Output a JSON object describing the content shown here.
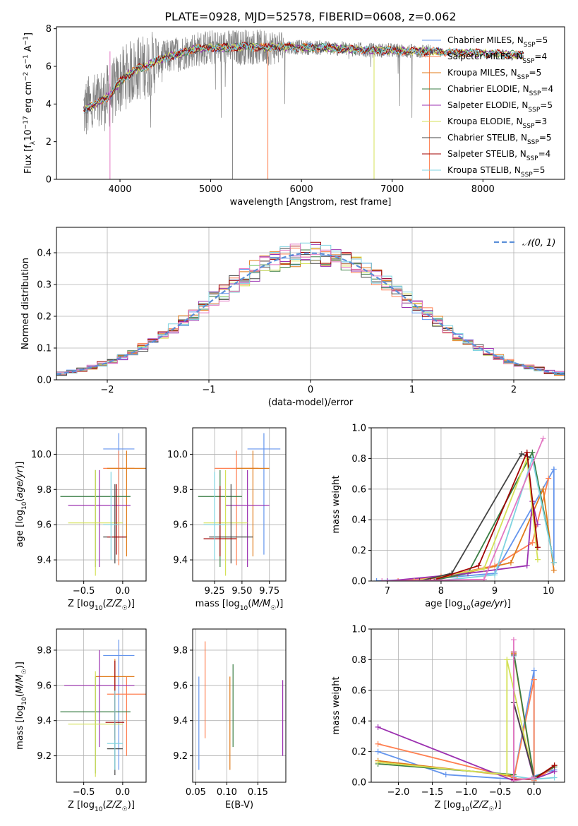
{
  "figure": {
    "title": "PLATE=0928, MJD=52578, FIBERID=0608, z=0.062"
  },
  "colors": {
    "models": [
      "#6495ed",
      "#ff7f50",
      "#e07b1a",
      "#3a7d44",
      "#9b30b0",
      "#d4e157",
      "#444444",
      "#a00000",
      "#7fd3e0"
    ],
    "extra_pink": "#e377c2",
    "data_gray": "#808080",
    "grid": "#b0b0b0",
    "gauss": "#5b8fd8"
  },
  "chart_data": [
    {
      "id": "spectrum",
      "type": "line",
      "xlabel": "wavelength [Angstrom, rest frame]",
      "ylabel": "Flux [f_λ 10^-17 erg cm^-2 s^-1 A^-1]",
      "xlim": [
        3300,
        8900
      ],
      "ylim": [
        0,
        8.1
      ],
      "xticks": [
        4000,
        5000,
        6000,
        7000,
        8000
      ],
      "yticks": [
        0,
        2,
        4,
        6,
        8
      ],
      "grid": false,
      "legend_position": "top-right",
      "legend": [
        {
          "base": "Chabrier MILES, N",
          "sub": "SSP",
          "rest": "=5"
        },
        {
          "base": "Salpeter MILES, N",
          "sub": "SSP",
          "rest": "=4"
        },
        {
          "base": "Kroupa MILES, N",
          "sub": "SSP",
          "rest": "=5"
        },
        {
          "base": "Chabrier ELODIE, N",
          "sub": "SSP",
          "rest": "=4"
        },
        {
          "base": "Salpeter ELODIE, N",
          "sub": "SSP",
          "rest": "=5"
        },
        {
          "base": "Kroupa ELODIE, N",
          "sub": "SSP",
          "rest": "=3"
        },
        {
          "base": "Chabrier STELIB, N",
          "sub": "SSP",
          "rest": "=5"
        },
        {
          "base": "Salpeter STELIB, N",
          "sub": "SSP",
          "rest": "=4"
        },
        {
          "base": "Kroupa STELIB, N",
          "sub": "SSP",
          "rest": "=5"
        }
      ],
      "continuum": {
        "x": [
          3600,
          3700,
          3800,
          3900,
          4000,
          4100,
          4200,
          4300,
          4400,
          4600,
          4800,
          5000,
          5200,
          5400,
          5600,
          5800,
          6000,
          6200,
          6400,
          6600,
          6800,
          7000,
          7200,
          7400,
          7600,
          7800,
          8000,
          8200,
          8400
        ],
        "y": [
          3.7,
          3.9,
          4.2,
          4.5,
          5.2,
          5.6,
          5.9,
          6.0,
          6.3,
          6.6,
          6.9,
          7.0,
          7.0,
          7.05,
          7.0,
          7.05,
          7.0,
          7.0,
          6.95,
          6.9,
          6.85,
          6.85,
          6.8,
          6.8,
          6.75,
          6.7,
          6.7,
          6.65,
          6.6
        ]
      }
    },
    {
      "id": "residuals",
      "type": "line",
      "xlabel": "(data-model)/error",
      "ylabel": "Normed distribution",
      "xlim": [
        -2.5,
        2.5
      ],
      "ylim": [
        0,
        0.48
      ],
      "xticks": [
        -2,
        -1,
        0,
        1,
        2
      ],
      "yticks": [
        0.0,
        0.1,
        0.2,
        0.3,
        0.4
      ],
      "grid": true,
      "legend_position": "top-right",
      "gauss_label": "𝒩(0, 1)",
      "bin_width": 0.1
    },
    {
      "id": "age-vs-Z",
      "type": "scatter",
      "xlabel": "Z [log10(Z/Z☉)]",
      "ylabel": "age  [log10(age/yr)]",
      "xlim": [
        -0.85,
        0.3
      ],
      "ylim": [
        9.28,
        10.15
      ],
      "xticks": [
        -0.5,
        0.0
      ],
      "yticks": [
        9.4,
        9.6,
        9.8,
        10.0
      ],
      "grid": true,
      "points": [
        {
          "x": -0.05,
          "y": 10.03,
          "xerr": 0.2,
          "yerr_lo": 0.6,
          "yerr_hi": 0.09
        },
        {
          "x": -0.05,
          "y": 9.92,
          "xerr": 0.2,
          "yerr_lo": 0.55,
          "yerr_hi": 0.1
        },
        {
          "x": 0.05,
          "y": 9.92,
          "xerr": 0.25,
          "yerr_lo": 0.5,
          "yerr_hi": 0.1
        },
        {
          "x": -0.35,
          "y": 9.76,
          "xerr": 0.45,
          "yerr_lo": 0.4,
          "yerr_hi": 0.15
        },
        {
          "x": -0.3,
          "y": 9.71,
          "xerr": 0.4,
          "yerr_lo": 0.35,
          "yerr_hi": 0.2
        },
        {
          "x": -0.35,
          "y": 9.61,
          "xerr": 0.35,
          "yerr_lo": 0.3,
          "yerr_hi": 0.3
        },
        {
          "x": -0.1,
          "y": 9.53,
          "xerr": 0.15,
          "yerr_lo": 0.15,
          "yerr_hi": 0.3
        },
        {
          "x": -0.08,
          "y": 9.53,
          "xerr": 0.12,
          "yerr_lo": 0.1,
          "yerr_hi": 0.3
        },
        {
          "x": -0.15,
          "y": 9.6,
          "xerr": 0.1,
          "yerr_lo": 0.2,
          "yerr_hi": 0.3
        }
      ]
    },
    {
      "id": "age-vs-mass",
      "type": "scatter",
      "xlabel": "mass [log10(M/M☉)]",
      "ylabel": "",
      "xlim": [
        9.05,
        9.9
      ],
      "ylim": [
        9.28,
        10.15
      ],
      "xticks": [
        9.25,
        9.5,
        9.75
      ],
      "yticks": [
        9.4,
        9.6,
        9.8,
        10.0
      ],
      "grid": true,
      "points": [
        {
          "x": 9.7,
          "y": 10.03,
          "xerr": 0.15,
          "yerr_lo": 0.6,
          "yerr_hi": 0.09
        },
        {
          "x": 9.45,
          "y": 9.92,
          "xerr": 0.2,
          "yerr_lo": 0.55,
          "yerr_hi": 0.1
        },
        {
          "x": 9.6,
          "y": 9.92,
          "xerr": 0.15,
          "yerr_lo": 0.5,
          "yerr_hi": 0.1
        },
        {
          "x": 9.3,
          "y": 9.76,
          "xerr": 0.2,
          "yerr_lo": 0.4,
          "yerr_hi": 0.15
        },
        {
          "x": 9.55,
          "y": 9.71,
          "xerr": 0.2,
          "yerr_lo": 0.35,
          "yerr_hi": 0.2
        },
        {
          "x": 9.35,
          "y": 9.61,
          "xerr": 0.2,
          "yerr_lo": 0.3,
          "yerr_hi": 0.3
        },
        {
          "x": 9.4,
          "y": 9.53,
          "xerr": 0.2,
          "yerr_lo": 0.15,
          "yerr_hi": 0.3
        },
        {
          "x": 9.3,
          "y": 9.52,
          "xerr": 0.15,
          "yerr_lo": 0.1,
          "yerr_hi": 0.3
        },
        {
          "x": 9.25,
          "y": 9.6,
          "xerr": 0.1,
          "yerr_lo": 0.2,
          "yerr_hi": 0.3
        }
      ]
    },
    {
      "id": "weight-vs-age",
      "type": "line",
      "xlabel": "age  [log10(age/yr)]",
      "ylabel": "mass weight",
      "xlim": [
        6.7,
        10.3
      ],
      "ylim": [
        0,
        1.0
      ],
      "xticks": [
        7,
        8,
        9,
        10
      ],
      "yticks": [
        0.0,
        0.2,
        0.4,
        0.6,
        0.8,
        1.0
      ],
      "grid": true,
      "series": [
        {
          "x": [
            6.8,
            8.0,
            9.0,
            10.1,
            10.1
          ],
          "y": [
            0.0,
            0.02,
            0.05,
            0.73,
            0.12
          ]
        },
        {
          "x": [
            7.2,
            8.0,
            9.0,
            9.7,
            10.0
          ],
          "y": [
            0.0,
            0.03,
            0.1,
            0.25,
            0.67
          ]
        },
        {
          "x": [
            7.5,
            8.3,
            9.3,
            9.9,
            10.1
          ],
          "y": [
            0.0,
            0.04,
            0.12,
            0.6,
            0.07
          ]
        },
        {
          "x": [
            7.8,
            8.5,
            9.7,
            10.1
          ],
          "y": [
            0.0,
            0.05,
            0.84,
            0.12
          ]
        },
        {
          "x": [
            7.0,
            8.5,
            9.6,
            9.7,
            9.8
          ],
          "y": [
            0.0,
            0.05,
            0.1,
            0.52,
            0.37
          ]
        },
        {
          "x": [
            7.5,
            8.8,
            9.6,
            9.8
          ],
          "y": [
            0.0,
            0.08,
            0.8,
            0.14
          ]
        },
        {
          "x": [
            7.6,
            8.2,
            9.5,
            9.7
          ],
          "y": [
            0.0,
            0.05,
            0.83,
            0.8
          ]
        },
        {
          "x": [
            7.8,
            8.7,
            9.6,
            9.8
          ],
          "y": [
            0.0,
            0.1,
            0.84,
            0.22
          ]
        },
        {
          "x": [
            7.9,
            9.0,
            9.7,
            10.1
          ],
          "y": [
            0.0,
            0.04,
            0.8,
            0.12
          ]
        },
        {
          "x": [
            6.9,
            8.8,
            9.9
          ],
          "y": [
            0.0,
            0.01,
            0.93
          ]
        }
      ]
    },
    {
      "id": "mass-vs-Z",
      "type": "scatter",
      "xlabel": "Z [log10(Z/Z☉)]",
      "ylabel": "mass [log10(M/M☉)]",
      "xlim": [
        -0.85,
        0.3
      ],
      "ylim": [
        9.05,
        9.92
      ],
      "xticks": [
        -0.5,
        0.0
      ],
      "yticks": [
        9.2,
        9.4,
        9.6,
        9.8
      ],
      "grid": true,
      "points": [
        {
          "x": -0.05,
          "y": 9.77,
          "xerr": 0.2,
          "yerr_lo": 0.65,
          "yerr_hi": 0.09
        },
        {
          "x": 0.05,
          "y": 9.55,
          "xerr": 0.25,
          "yerr_lo": 0.35,
          "yerr_hi": 0.1
        },
        {
          "x": -0.1,
          "y": 9.65,
          "xerr": 0.25,
          "yerr_lo": 0.35,
          "yerr_hi": 0.1
        },
        {
          "x": -0.35,
          "y": 9.45,
          "xerr": 0.45,
          "yerr_lo": 0.35,
          "yerr_hi": 0.2
        },
        {
          "x": -0.3,
          "y": 9.6,
          "xerr": 0.45,
          "yerr_lo": 0.35,
          "yerr_hi": 0.2
        },
        {
          "x": -0.35,
          "y": 9.38,
          "xerr": 0.35,
          "yerr_lo": 0.3,
          "yerr_hi": 0.3
        },
        {
          "x": -0.1,
          "y": 9.24,
          "xerr": 0.1,
          "yerr_lo": 0.15,
          "yerr_hi": 0.3
        },
        {
          "x": -0.1,
          "y": 9.39,
          "xerr": 0.12,
          "yerr_lo": 0.1,
          "yerr_hi": 0.35
        },
        {
          "x": -0.1,
          "y": 9.27,
          "xerr": 0.1,
          "yerr_lo": 0.15,
          "yerr_hi": 0.3
        }
      ]
    },
    {
      "id": "mass-vs-ebv",
      "type": "scatter",
      "xlabel": "E(B-V)",
      "ylabel": "",
      "xlim": [
        0.045,
        0.195
      ],
      "ylim": [
        9.05,
        9.92
      ],
      "xticks": [
        0.05,
        0.1,
        0.15
      ],
      "yticks": [
        9.2,
        9.4,
        9.6,
        9.8
      ],
      "grid": true,
      "points": [
        {
          "x": 0.055,
          "y": 9.4,
          "yerr_lo": 0.28,
          "yerr_hi": 0.25
        },
        {
          "x": 0.065,
          "y": 9.6,
          "yerr_lo": 0.3,
          "yerr_hi": 0.25
        },
        {
          "x": 0.105,
          "y": 9.4,
          "yerr_lo": 0.28,
          "yerr_hi": 0.25
        },
        {
          "x": 0.11,
          "y": 9.5,
          "yerr_lo": 0.25,
          "yerr_hi": 0.22
        },
        {
          "x": 0.19,
          "y": 9.4,
          "yerr_lo": 0.2,
          "yerr_hi": 0.23
        }
      ]
    },
    {
      "id": "weight-vs-Z",
      "type": "line",
      "xlabel": "Z [log10(Z/Z☉)]",
      "ylabel": "mass weight",
      "xlim": [
        -2.4,
        0.45
      ],
      "ylim": [
        0,
        1.0
      ],
      "xticks": [
        -2.0,
        -1.5,
        -1.0,
        -0.5,
        0.0
      ],
      "yticks": [
        0.0,
        0.2,
        0.4,
        0.6,
        0.8,
        1.0
      ],
      "grid": true,
      "series": [
        {
          "x": [
            -2.3,
            -1.3,
            -0.3,
            0.0,
            0.0,
            0.3
          ],
          "y": [
            0.2,
            0.05,
            0.02,
            0.73,
            0.04,
            0.08
          ]
        },
        {
          "x": [
            -2.3,
            -0.3,
            -0.3,
            0.0,
            0.0,
            0.3
          ],
          "y": [
            0.25,
            0.03,
            0.02,
            0.67,
            0.01,
            0.1
          ]
        },
        {
          "x": [
            -2.3,
            -0.3,
            -0.3,
            0.0,
            0.3
          ],
          "y": [
            0.14,
            0.04,
            0.84,
            0.02,
            0.11
          ]
        },
        {
          "x": [
            -2.3,
            -0.3,
            -0.3,
            0.0,
            0.3
          ],
          "y": [
            0.12,
            0.05,
            0.85,
            0.03,
            0.1
          ]
        },
        {
          "x": [
            -2.3,
            -0.3,
            -0.3,
            0.0,
            0.3
          ],
          "y": [
            0.36,
            0.01,
            0.52,
            0.02,
            0.07
          ]
        },
        {
          "x": [
            -2.3,
            -0.4,
            -0.4,
            0.0
          ],
          "y": [
            0.13,
            0.05,
            0.8,
            0.02
          ]
        },
        {
          "x": [
            -0.3,
            -0.3,
            0.0
          ],
          "y": [
            0.83,
            0.52,
            0.03
          ]
        },
        {
          "x": [
            -0.3,
            -0.3,
            0.0,
            0.3
          ],
          "y": [
            0.85,
            0.02,
            0.02,
            0.11
          ]
        },
        {
          "x": [
            -0.3,
            -0.3,
            0.0,
            0.3
          ],
          "y": [
            0.82,
            0.04,
            0.02,
            0.03
          ]
        },
        {
          "x": [
            -0.3,
            -0.3,
            0.0
          ],
          "y": [
            0.93,
            0.01,
            0.03
          ]
        }
      ]
    }
  ]
}
